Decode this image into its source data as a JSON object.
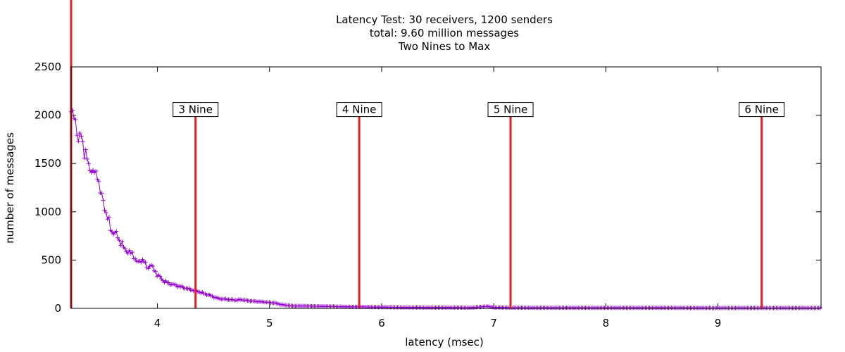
{
  "chart_data": {
    "type": "line",
    "title": [
      "Latency Test: 30 receivers, 1200 senders",
      "total: 9.60 million messages",
      "Two Nines to Max"
    ],
    "xlabel": "latency (msec)",
    "ylabel": "number of messages",
    "xlim": [
      3.23,
      9.92
    ],
    "ylim": [
      0,
      2500
    ],
    "xticks": [
      4,
      5,
      6,
      7,
      8,
      9
    ],
    "yticks": [
      0,
      500,
      1000,
      1500,
      2000,
      2500
    ],
    "grid": false,
    "colors": {
      "series": "#9400d3",
      "markers": "#e51e1e",
      "frame": "#000000"
    },
    "markers": [
      {
        "label": "3 Nine",
        "x": 4.34,
        "height": 2000
      },
      {
        "label": "4 Nine",
        "x": 5.8,
        "height": 2000
      },
      {
        "label": "5 Nine",
        "x": 7.15,
        "height": 2000
      },
      {
        "label": "6 Nine",
        "x": 9.39,
        "height": 2000
      }
    ],
    "left_edge_marker": {
      "x": 3.23
    },
    "series": [
      {
        "x": [
          3.23,
          3.25,
          3.27,
          3.28,
          3.29,
          3.31,
          3.32,
          3.33,
          3.34,
          3.36,
          3.38,
          3.4,
          3.42,
          3.44,
          3.46,
          3.48,
          3.49,
          3.51,
          3.52,
          3.54,
          3.55,
          3.57,
          3.58,
          3.6,
          3.62,
          3.64,
          3.66,
          3.68,
          3.7,
          3.72,
          3.74,
          3.76,
          3.78,
          3.8,
          3.82,
          3.84,
          3.86,
          3.88,
          3.9,
          3.92,
          3.94,
          3.96,
          3.98,
          4.0,
          4.02,
          4.04,
          4.06,
          4.08,
          4.1,
          4.13,
          4.16,
          4.19,
          4.22,
          4.25,
          4.28,
          4.31,
          4.34,
          4.38,
          4.42,
          4.46,
          4.5,
          4.55,
          4.6,
          4.65,
          4.7,
          4.75,
          4.8,
          4.85,
          4.9,
          4.95,
          5.0,
          5.05,
          5.1,
          5.2,
          5.3,
          5.4,
          5.5,
          5.6,
          5.7,
          5.8,
          5.9,
          6.0,
          6.2,
          6.4,
          6.6,
          6.8,
          6.95,
          7.0,
          7.2,
          7.4,
          7.6,
          7.8,
          8.0,
          8.5,
          9.0,
          9.5,
          9.92
        ],
        "y": [
          2050,
          1990,
          1950,
          1850,
          1700,
          1800,
          1780,
          1820,
          1580,
          1620,
          1500,
          1440,
          1420,
          1400,
          1390,
          1300,
          1200,
          1150,
          1080,
          1000,
          950,
          900,
          820,
          790,
          780,
          760,
          700,
          680,
          620,
          600,
          590,
          570,
          560,
          520,
          470,
          480,
          510,
          490,
          430,
          420,
          460,
          410,
          390,
          340,
          330,
          300,
          280,
          270,
          260,
          250,
          240,
          230,
          220,
          210,
          200,
          190,
          180,
          170,
          150,
          140,
          120,
          100,
          95,
          90,
          85,
          90,
          80,
          75,
          70,
          65,
          60,
          55,
          40,
          25,
          25,
          22,
          20,
          18,
          16,
          15,
          14,
          12,
          10,
          8,
          8,
          7,
          20,
          9,
          7,
          6,
          6,
          5,
          5,
          5,
          4,
          4,
          4
        ]
      }
    ]
  }
}
